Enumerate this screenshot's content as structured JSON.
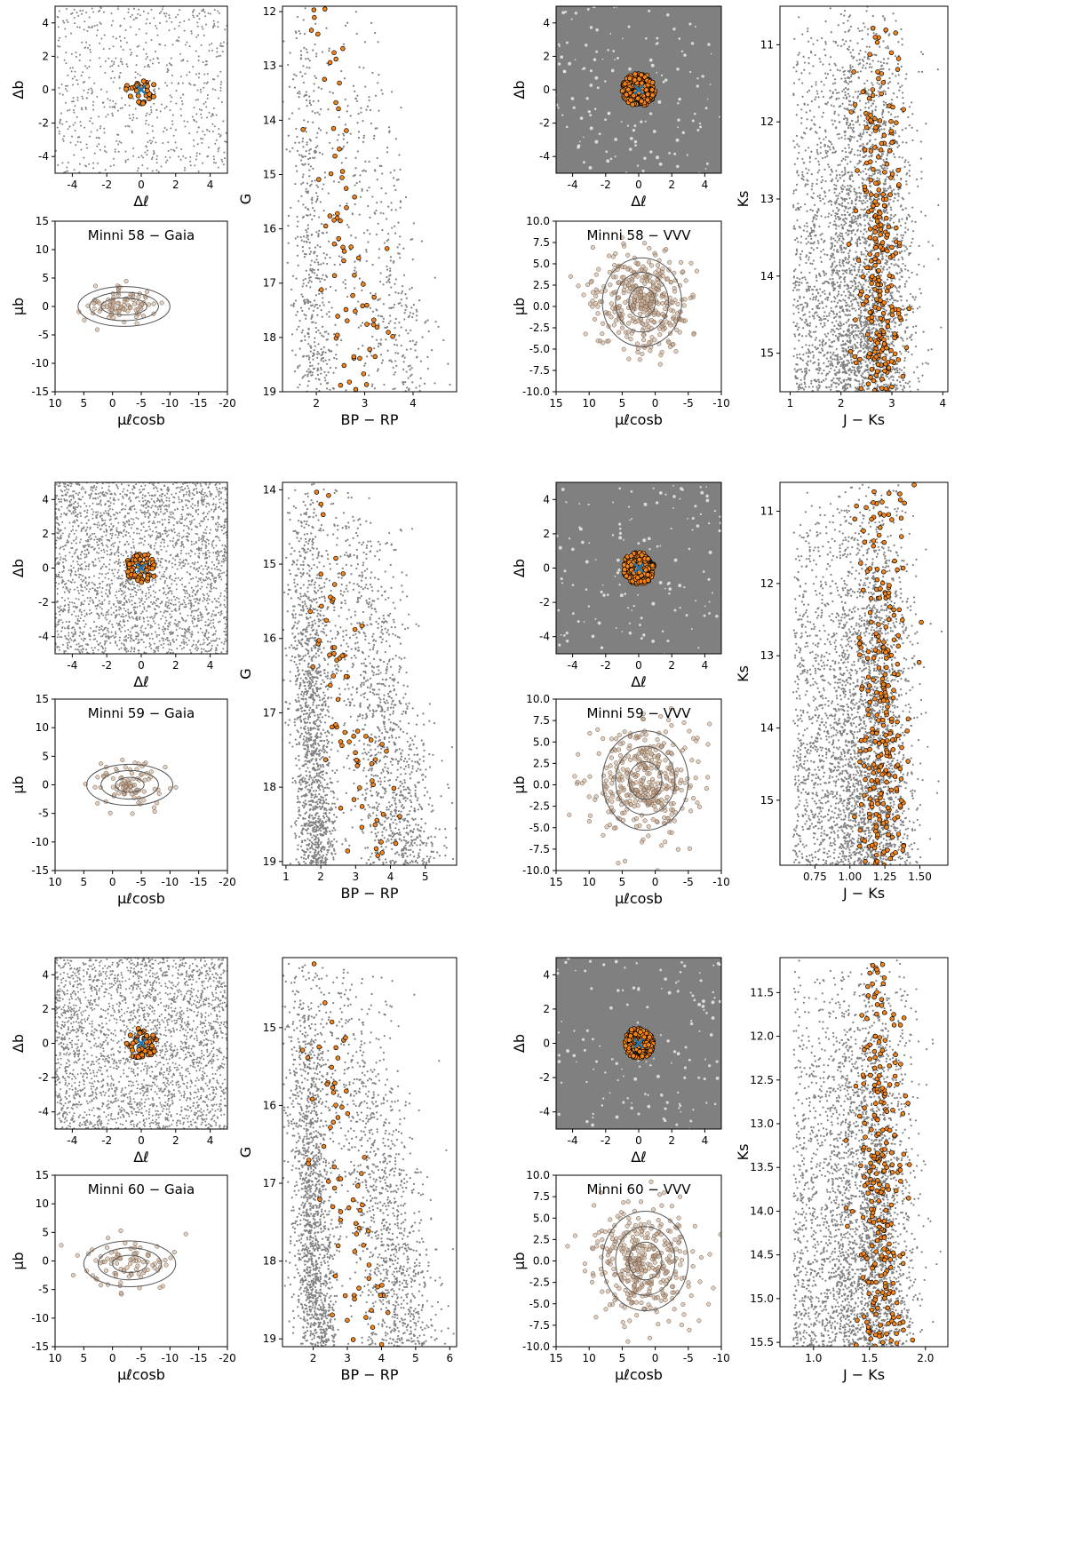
{
  "colors": {
    "field": "#808080",
    "member": "#f58518",
    "member_edge": "#000000",
    "center": "#1f77b4",
    "contour": "#555555",
    "pm_point": "#c8a88c"
  },
  "labels": {
    "dl": "Δℓ",
    "db": "Δb",
    "mul": "μℓcosb",
    "mub": "μb",
    "bprp": "BP − RP",
    "g": "G",
    "jks": "J − Ks",
    "ks": "Ks"
  },
  "chart_data": [
    {
      "id": "m58-gaia-sky",
      "type": "scatter",
      "cluster": "Minni 58",
      "survey": "Gaia",
      "kind": "sky",
      "xlim": [
        -5,
        5
      ],
      "ylim": [
        -5,
        5
      ],
      "xticks": [
        "-4",
        "-2",
        "0",
        "2",
        "4"
      ],
      "yticks": [
        "4",
        "2",
        "0",
        "-2",
        "-4"
      ],
      "field_density": "sparse",
      "members": {
        "center": [
          0,
          0
        ],
        "radius": 0.9,
        "count": 30
      },
      "center_marker": [
        0,
        0
      ]
    },
    {
      "id": "m58-gaia-pm",
      "type": "scatter",
      "cluster": "Minni 58",
      "survey": "Gaia",
      "kind": "pm",
      "title": "Minni 58  −  Gaia",
      "xlim": [
        10,
        -20
      ],
      "ylim": [
        -15,
        15
      ],
      "xticks": [
        "10",
        "5",
        "0",
        "-5",
        "-10",
        "-15",
        "-20"
      ],
      "yticks": [
        "15",
        "10",
        "5",
        "0",
        "-5",
        "-10",
        "-15"
      ],
      "pm_center": [
        -2,
        0
      ],
      "pm_spread": [
        3,
        1.5
      ],
      "contours": [
        [
          4,
          1.5
        ],
        [
          6,
          2.5
        ],
        [
          8,
          3.5
        ]
      ]
    },
    {
      "id": "m58-gaia-cmd",
      "type": "scatter",
      "cluster": "Minni 58",
      "survey": "Gaia",
      "kind": "cmd",
      "xlim": [
        1.3,
        4.9
      ],
      "ylim": [
        19,
        11.9
      ],
      "xticks": [
        "2",
        "3",
        "4"
      ],
      "yticks": [
        "12",
        "13",
        "14",
        "15",
        "16",
        "17",
        "18",
        "19"
      ]
    },
    {
      "id": "m58-vvv-sky",
      "type": "scatter",
      "cluster": "Minni 58",
      "survey": "VVV",
      "kind": "sky",
      "xlim": [
        -5,
        5
      ],
      "ylim": [
        -5,
        5
      ],
      "xticks": [
        "-4",
        "-2",
        "0",
        "2",
        "4"
      ],
      "yticks": [
        "4",
        "2",
        "0",
        "-2",
        "-4"
      ],
      "field_density": "dense",
      "members": {
        "center": [
          0,
          0
        ],
        "radius": 1.0,
        "count": 200
      },
      "center_marker": [
        0,
        0
      ]
    },
    {
      "id": "m58-vvv-pm",
      "type": "scatter",
      "cluster": "Minni 58",
      "survey": "VVV",
      "kind": "pm",
      "title": "Minni 58  −  VVV",
      "xlim": [
        15,
        -10
      ],
      "ylim": [
        -10,
        10
      ],
      "xticks": [
        "15",
        "10",
        "5",
        "0",
        "-5",
        "-10"
      ],
      "yticks": [
        "10.0",
        "7.5",
        "5.0",
        "2.5",
        "0.0",
        "-2.5",
        "-5.0",
        "-7.5",
        "-10.0"
      ],
      "pm_center": [
        2,
        0.5
      ],
      "pm_spread": [
        3.5,
        3.0
      ],
      "contours": [
        [
          2,
          1.8
        ],
        [
          4,
          3.5
        ],
        [
          6,
          5.2
        ]
      ]
    },
    {
      "id": "m58-vvv-cmd",
      "type": "scatter",
      "cluster": "Minni 58",
      "survey": "VVV",
      "kind": "cmd",
      "xlim": [
        0.8,
        4.1
      ],
      "ylim": [
        15.5,
        10.5
      ],
      "xticks": [
        "1",
        "2",
        "3",
        "4"
      ],
      "yticks": [
        "11",
        "12",
        "13",
        "14",
        "15"
      ]
    },
    {
      "id": "m59-gaia-sky",
      "type": "scatter",
      "cluster": "Minni 59",
      "survey": "Gaia",
      "kind": "sky",
      "xlim": [
        -5,
        5
      ],
      "ylim": [
        -5,
        5
      ],
      "xticks": [
        "-4",
        "-2",
        "0",
        "2",
        "4"
      ],
      "yticks": [
        "4",
        "2",
        "0",
        "-2",
        "-4"
      ],
      "field_density": "medium",
      "members": {
        "center": [
          0,
          0
        ],
        "radius": 0.9,
        "count": 70
      },
      "center_marker": [
        0,
        0
      ]
    },
    {
      "id": "m59-gaia-pm",
      "type": "scatter",
      "cluster": "Minni 59",
      "survey": "Gaia",
      "kind": "pm",
      "title": "Minni 59  −  Gaia",
      "xlim": [
        10,
        -20
      ],
      "ylim": [
        -15,
        15
      ],
      "xticks": [
        "10",
        "5",
        "0",
        "-5",
        "-10",
        "-15",
        "-20"
      ],
      "yticks": [
        "15",
        "10",
        "5",
        "0",
        "-5",
        "-10",
        "-15"
      ],
      "pm_center": [
        -3,
        0
      ],
      "pm_spread": [
        3,
        2
      ],
      "contours": [
        [
          2.5,
          1.3
        ],
        [
          5,
          2.5
        ],
        [
          7.5,
          3.6
        ]
      ]
    },
    {
      "id": "m59-gaia-cmd",
      "type": "scatter",
      "cluster": "Minni 59",
      "survey": "Gaia",
      "kind": "cmd",
      "xlim": [
        0.9,
        5.9
      ],
      "ylim": [
        19.05,
        13.9
      ],
      "xticks": [
        "1",
        "2",
        "3",
        "4",
        "5"
      ],
      "yticks": [
        "14",
        "15",
        "16",
        "17",
        "18",
        "19"
      ]
    },
    {
      "id": "m59-vvv-sky",
      "type": "scatter",
      "cluster": "Minni 59",
      "survey": "VVV",
      "kind": "sky",
      "xlim": [
        -5,
        5
      ],
      "ylim": [
        -5,
        5
      ],
      "xticks": [
        "-4",
        "-2",
        "0",
        "2",
        "4"
      ],
      "yticks": [
        "4",
        "2",
        "0",
        "-2",
        "-4"
      ],
      "field_density": "dense",
      "members": {
        "center": [
          0,
          0
        ],
        "radius": 0.95,
        "count": 180
      },
      "center_marker": [
        0,
        0
      ]
    },
    {
      "id": "m59-vvv-pm",
      "type": "scatter",
      "cluster": "Minni 59",
      "survey": "VVV",
      "kind": "pm",
      "title": "Minni 59  −  VVV",
      "xlim": [
        15,
        -10
      ],
      "ylim": [
        -10,
        10
      ],
      "xticks": [
        "15",
        "10",
        "5",
        "0",
        "-5",
        "-10"
      ],
      "yticks": [
        "10.0",
        "7.5",
        "5.0",
        "2.5",
        "0.0",
        "-2.5",
        "-5.0",
        "-7.5",
        "-10.0"
      ],
      "pm_center": [
        1.5,
        0.5
      ],
      "pm_spread": [
        4,
        3.2
      ],
      "contours": [
        [
          2.5,
          2.2
        ],
        [
          4.5,
          4
        ],
        [
          6.5,
          5.8
        ]
      ]
    },
    {
      "id": "m59-vvv-cmd",
      "type": "scatter",
      "cluster": "Minni 59",
      "survey": "VVV",
      "kind": "cmd",
      "xlim": [
        0.5,
        1.7
      ],
      "ylim": [
        15.9,
        10.6
      ],
      "xticks": [
        "0.75",
        "1.00",
        "1.25",
        "1.50"
      ],
      "yticks": [
        "11",
        "12",
        "13",
        "14",
        "15"
      ]
    },
    {
      "id": "m60-gaia-sky",
      "type": "scatter",
      "cluster": "Minni 60",
      "survey": "Gaia",
      "kind": "sky",
      "xlim": [
        -5,
        5
      ],
      "ylim": [
        -5,
        5
      ],
      "xticks": [
        "-4",
        "-2",
        "0",
        "2",
        "4"
      ],
      "yticks": [
        "4",
        "2",
        "0",
        "-2",
        "-4"
      ],
      "field_density": "medium",
      "members": {
        "center": [
          0,
          0
        ],
        "radius": 0.9,
        "count": 60
      },
      "center_marker": [
        0,
        0
      ]
    },
    {
      "id": "m60-gaia-pm",
      "type": "scatter",
      "cluster": "Minni 60",
      "survey": "Gaia",
      "kind": "pm",
      "title": "Minni 60  −  Gaia",
      "xlim": [
        10,
        -20
      ],
      "ylim": [
        -15,
        15
      ],
      "xticks": [
        "10",
        "5",
        "0",
        "-5",
        "-10",
        "-15",
        "-20"
      ],
      "yticks": [
        "15",
        "10",
        "5",
        "0",
        "-5",
        "-10",
        "-15"
      ],
      "pm_center": [
        -3,
        -0.5
      ],
      "pm_spread": [
        4,
        2.5
      ],
      "contours": [
        [
          3,
          1.5
        ],
        [
          5.5,
          2.8
        ],
        [
          8,
          4
        ]
      ]
    },
    {
      "id": "m60-gaia-cmd",
      "type": "scatter",
      "cluster": "Minni 60",
      "survey": "Gaia",
      "kind": "cmd",
      "xlim": [
        1.1,
        6.2
      ],
      "ylim": [
        19.1,
        14.1
      ],
      "xticks": [
        "2",
        "3",
        "4",
        "5",
        "6"
      ],
      "yticks": [
        "15",
        "16",
        "17",
        "18",
        "19"
      ]
    },
    {
      "id": "m60-vvv-sky",
      "type": "scatter",
      "cluster": "Minni 60",
      "survey": "VVV",
      "kind": "sky",
      "xlim": [
        -5,
        5
      ],
      "ylim": [
        -5,
        5
      ],
      "xticks": [
        "-4",
        "-2",
        "0",
        "2",
        "4"
      ],
      "yticks": [
        "4",
        "2",
        "0",
        "-2",
        "-4"
      ],
      "field_density": "dense",
      "members": {
        "center": [
          0,
          0
        ],
        "radius": 0.9,
        "count": 180
      },
      "center_marker": [
        0,
        0
      ]
    },
    {
      "id": "m60-vvv-pm",
      "type": "scatter",
      "cluster": "Minni 60",
      "survey": "VVV",
      "kind": "pm",
      "title": "Minni 60  −  VVV",
      "xlim": [
        15,
        -10
      ],
      "ylim": [
        -10,
        10
      ],
      "xticks": [
        "15",
        "10",
        "5",
        "0",
        "-5",
        "-10"
      ],
      "yticks": [
        "10.0",
        "7.5",
        "5.0",
        "2.5",
        "0.0",
        "-2.5",
        "-5.0",
        "-7.5",
        "-10.0"
      ],
      "pm_center": [
        1.5,
        0
      ],
      "pm_spread": [
        4,
        3.2
      ],
      "contours": [
        [
          2.5,
          2.2
        ],
        [
          4.5,
          4
        ],
        [
          6.5,
          5.8
        ]
      ]
    },
    {
      "id": "m60-vvv-cmd",
      "type": "scatter",
      "cluster": "Minni 60",
      "survey": "VVV",
      "kind": "cmd",
      "xlim": [
        0.7,
        2.2
      ],
      "ylim": [
        15.55,
        11.1
      ],
      "xticks": [
        "1.0",
        "1.5",
        "2.0"
      ],
      "yticks": [
        "11.5",
        "12.0",
        "12.5",
        "13.0",
        "13.5",
        "14.0",
        "14.5",
        "15.0",
        "15.5"
      ]
    }
  ]
}
